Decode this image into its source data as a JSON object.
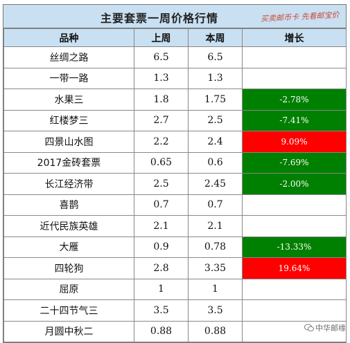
{
  "title": "主要套票一周价格行情",
  "watermark_top": "买卖邮币卡 先看邮宝价",
  "watermark_bottom": "中华邮缘",
  "headers": [
    "品种",
    "上周",
    "本周",
    "增长"
  ],
  "rows": [
    {
      "name": "丝绸之路",
      "last": "6.5",
      "this": "6.5",
      "growth": "",
      "trend": "none"
    },
    {
      "name": "一带一路",
      "last": "1.3",
      "this": "1.3",
      "growth": "",
      "trend": "none"
    },
    {
      "name": "水果三",
      "last": "1.8",
      "this": "1.75",
      "growth": "-2.78%",
      "trend": "down"
    },
    {
      "name": "红楼梦三",
      "last": "2.7",
      "this": "2.5",
      "growth": "-7.41%",
      "trend": "down"
    },
    {
      "name": "四景山水图",
      "last": "2.2",
      "this": "2.4",
      "growth": "9.09%",
      "trend": "up"
    },
    {
      "name": "2017金砖套票",
      "last": "0.65",
      "this": "0.6",
      "growth": "-7.69%",
      "trend": "down"
    },
    {
      "name": "长江经济带",
      "last": "2.5",
      "this": "2.45",
      "growth": "-2.00%",
      "trend": "down"
    },
    {
      "name": "喜鹊",
      "last": "0.7",
      "this": "0.7",
      "growth": "",
      "trend": "none"
    },
    {
      "name": "近代民族英雄",
      "last": "2.1",
      "this": "2.1",
      "growth": "",
      "trend": "none"
    },
    {
      "name": "大雁",
      "last": "0.9",
      "this": "0.78",
      "growth": "-13.33%",
      "trend": "down"
    },
    {
      "name": "四轮狗",
      "last": "2.8",
      "this": "3.35",
      "growth": "19.64%",
      "trend": "up"
    },
    {
      "name": "屈原",
      "last": "1",
      "this": "1",
      "growth": "",
      "trend": "none"
    },
    {
      "name": "二十四节气三",
      "last": "3.5",
      "this": "3.5",
      "growth": "",
      "trend": "none"
    },
    {
      "name": "月圆中秋二",
      "last": "0.88",
      "this": "0.88",
      "growth": "",
      "trend": "none"
    }
  ],
  "colors": {
    "header_bg": "#c9e0f2",
    "up": "#ff0000",
    "down": "#008000"
  }
}
